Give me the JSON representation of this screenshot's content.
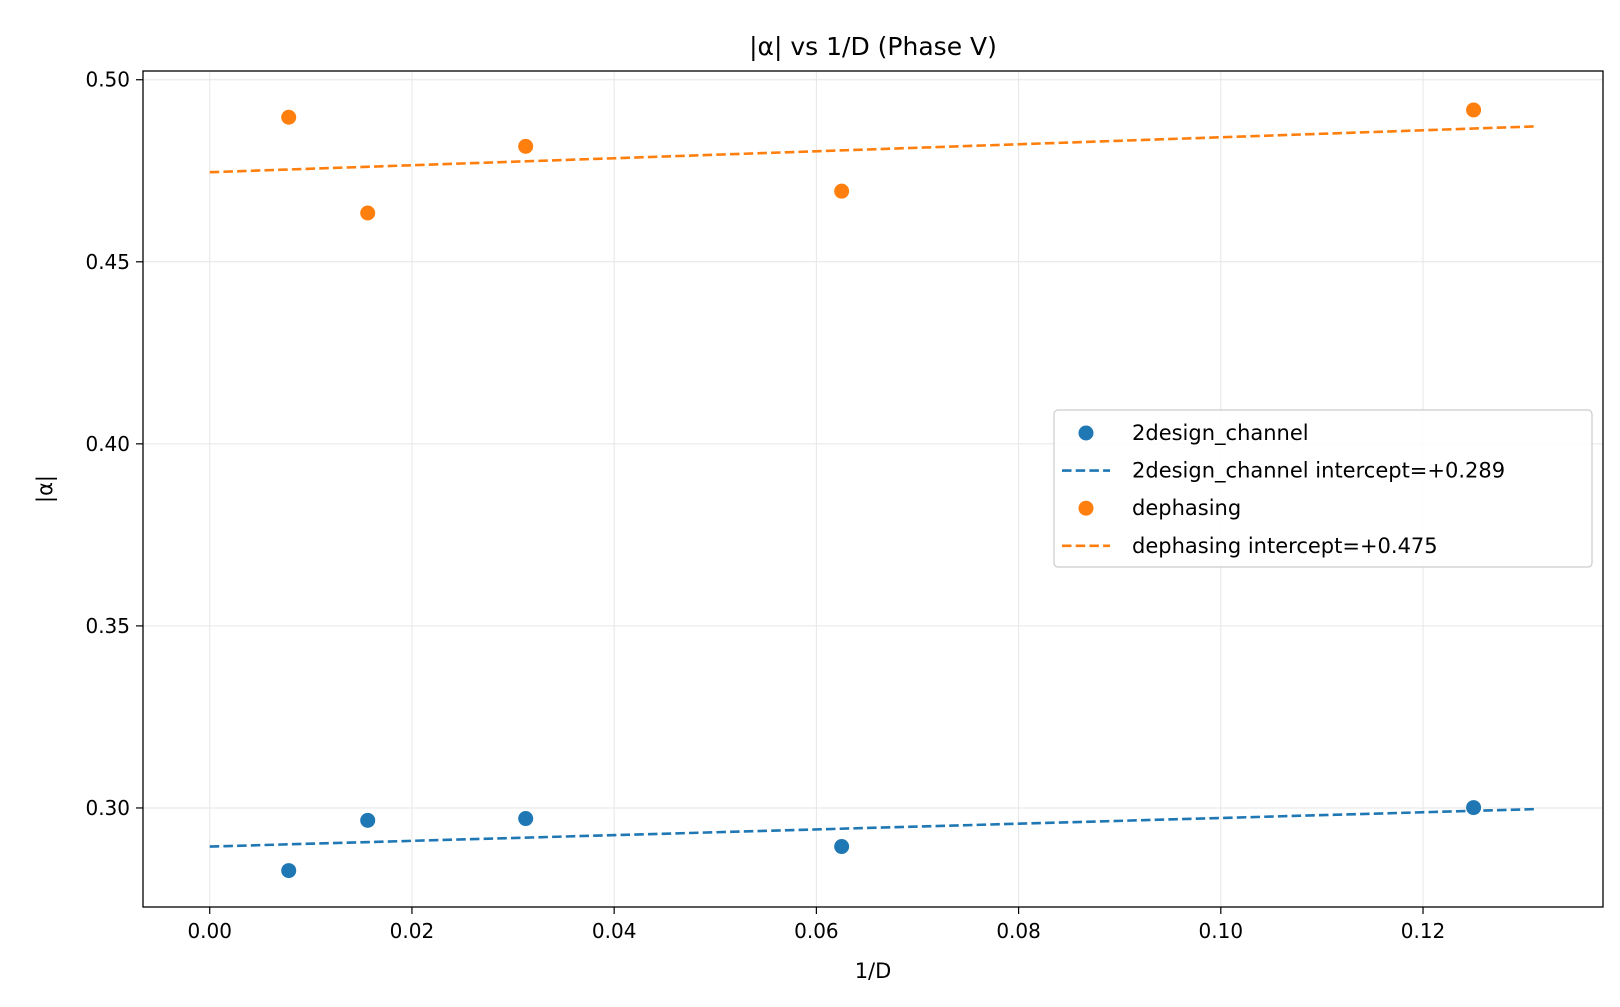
{
  "chart_data": {
    "type": "scatter",
    "title": "|α| vs 1/D (Phase V)",
    "xlabel": "1/D",
    "ylabel": "|α|",
    "xlim": [
      -0.0066,
      0.1378
    ],
    "ylim": [
      0.2728,
      0.5024
    ],
    "xticks": [
      0.0,
      0.02,
      0.04,
      0.06,
      0.08,
      0.1,
      0.12
    ],
    "xtick_labels": [
      "0.00",
      "0.02",
      "0.04",
      "0.06",
      "0.08",
      "0.10",
      "0.12"
    ],
    "yticks": [
      0.3,
      0.35,
      0.4,
      0.45,
      0.5
    ],
    "ytick_labels": [
      "0.30",
      "0.35",
      "0.40",
      "0.45",
      "0.50"
    ],
    "grid": true,
    "legend_position": "center-right",
    "series": [
      {
        "name": "2design_channel",
        "kind": "scatter",
        "color": "#1f77b4",
        "points": [
          {
            "x": 0.0078125,
            "y": 0.2828
          },
          {
            "x": 0.015625,
            "y": 0.2966
          },
          {
            "x": 0.03125,
            "y": 0.2971
          },
          {
            "x": 0.0625,
            "y": 0.2894
          },
          {
            "x": 0.125,
            "y": 0.3001
          }
        ]
      },
      {
        "name": "2design_channel intercept=+0.289",
        "kind": "line",
        "style": "dashed",
        "color": "#1f77b4",
        "points": [
          {
            "x": 0.0,
            "y": 0.2894
          },
          {
            "x": 0.13125,
            "y": 0.2997
          }
        ]
      },
      {
        "name": "dephasing",
        "kind": "scatter",
        "color": "#ff7f0e",
        "points": [
          {
            "x": 0.0078125,
            "y": 0.4897
          },
          {
            "x": 0.015625,
            "y": 0.4634
          },
          {
            "x": 0.03125,
            "y": 0.4817
          },
          {
            "x": 0.0625,
            "y": 0.4694
          },
          {
            "x": 0.125,
            "y": 0.4917
          }
        ]
      },
      {
        "name": "dephasing intercept=+0.475",
        "kind": "line",
        "style": "dashed",
        "color": "#ff7f0e",
        "points": [
          {
            "x": 0.0,
            "y": 0.4746
          },
          {
            "x": 0.13125,
            "y": 0.4872
          }
        ]
      }
    ]
  }
}
